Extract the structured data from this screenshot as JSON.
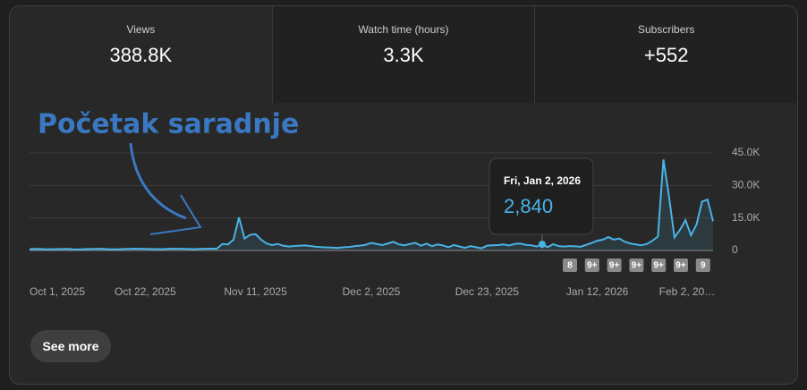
{
  "metrics": [
    {
      "label": "Views",
      "value": "388.8K"
    },
    {
      "label": "Watch time (hours)",
      "value": "3.3K"
    },
    {
      "label": "Subscribers",
      "value": "+552"
    }
  ],
  "button": "See more",
  "chart_data": {
    "type": "area",
    "annotation": "Početak saradnje",
    "tooltip_title": "Fri, Jan 2, 2026",
    "color": "#4ab3e6",
    "categories": [
      "Oct 1, 2025",
      null,
      null,
      null,
      null,
      null,
      null,
      null,
      null,
      null,
      null,
      null,
      null,
      null,
      null,
      null,
      null,
      null,
      null,
      null,
      null,
      "Oct 22, 2025",
      null,
      null,
      null,
      null,
      null,
      null,
      null,
      null,
      null,
      null,
      null,
      null,
      null,
      null,
      null,
      null,
      null,
      null,
      null,
      "Nov 11, 2025",
      null,
      null,
      null,
      null,
      null,
      null,
      null,
      null,
      null,
      null,
      null,
      null,
      null,
      null,
      null,
      null,
      null,
      null,
      null,
      null,
      "Dec 2, 2025",
      null,
      null,
      null,
      null,
      null,
      null,
      null,
      null,
      null,
      null,
      null,
      null,
      null,
      null,
      null,
      null,
      null,
      null,
      null,
      null,
      "Dec 23, 2025",
      null,
      null,
      null,
      null,
      null,
      null,
      null,
      null,
      null,
      null,
      null,
      null,
      null,
      null,
      null,
      null,
      null,
      null,
      null,
      "Jan 12, 2026",
      null,
      null,
      null,
      null,
      null,
      null,
      null,
      null,
      null,
      null,
      null,
      null,
      null,
      null,
      null,
      null,
      null,
      null,
      null,
      null,
      "Feb 2, 20…"
    ],
    "values": [
      600,
      700,
      650,
      500,
      550,
      600,
      650,
      700,
      500,
      450,
      600,
      650,
      700,
      750,
      600,
      550,
      500,
      650,
      700,
      800,
      750,
      700,
      650,
      600,
      550,
      700,
      800,
      750,
      700,
      650,
      600,
      700,
      750,
      800,
      850,
      3000,
      2800,
      5000,
      15300,
      5500,
      7200,
      7500,
      5000,
      3200,
      2500,
      3000,
      2200,
      1800,
      2000,
      2200,
      2300,
      2000,
      1700,
      1500,
      1400,
      1300,
      1200,
      1500,
      1600,
      2000,
      2200,
      2600,
      3500,
      3000,
      2500,
      3200,
      4000,
      2800,
      2400,
      3000,
      3500,
      2200,
      3100,
      2000,
      2800,
      2300,
      1500,
      2500,
      1800,
      1200,
      2000,
      1500,
      1000,
      2200,
      2400,
      2500,
      2800,
      2300,
      3000,
      3200,
      2600,
      2400,
      1800,
      2840,
      1500,
      2900,
      2000,
      1800,
      2000,
      1900,
      1700,
      2600,
      3500,
      4500,
      5000,
      6200,
      5000,
      5500,
      4000,
      3200,
      2800,
      2400,
      3000,
      4500,
      6500,
      42000,
      25000,
      6000,
      9500,
      14000,
      7000,
      12000,
      22500,
      23500,
      13500
    ],
    "value_labels": [
      null,
      null,
      null,
      null,
      null,
      null,
      null,
      null,
      null,
      null,
      null,
      null,
      null,
      null,
      null,
      null,
      null,
      null,
      null,
      null,
      null,
      null,
      null,
      null,
      null,
      null,
      null,
      null,
      null,
      null,
      null,
      null,
      null,
      null,
      null,
      null,
      null,
      null,
      null,
      null,
      null,
      null,
      null,
      null,
      null,
      null,
      null,
      null,
      null,
      null,
      null,
      null,
      null,
      null,
      null,
      null,
      null,
      null,
      null,
      null,
      null,
      null,
      null,
      null,
      null,
      null,
      null,
      null,
      null,
      null,
      null,
      null,
      null,
      null,
      null,
      null,
      null,
      null,
      null,
      null,
      null,
      null,
      null,
      null,
      null,
      null,
      null,
      null,
      null,
      null,
      null,
      null,
      null,
      "2,840",
      null,
      null,
      null,
      null,
      null,
      null,
      null,
      null,
      null,
      null,
      null,
      null,
      null,
      null,
      null,
      null,
      null,
      null,
      null,
      null,
      null,
      null,
      null,
      null,
      null,
      null,
      null,
      null,
      null,
      null,
      null
    ],
    "ylim": [
      0,
      45000
    ],
    "yticks": [
      0,
      {
        "value": 15000,
        "label": "15.0K"
      },
      {
        "value": 30000,
        "label": "30.0K"
      },
      {
        "value": 45000,
        "label": "45.0K"
      }
    ],
    "grid": true,
    "markers": [
      "8",
      "9+",
      "9+",
      "9+",
      "9+",
      "9+",
      "9"
    ]
  }
}
